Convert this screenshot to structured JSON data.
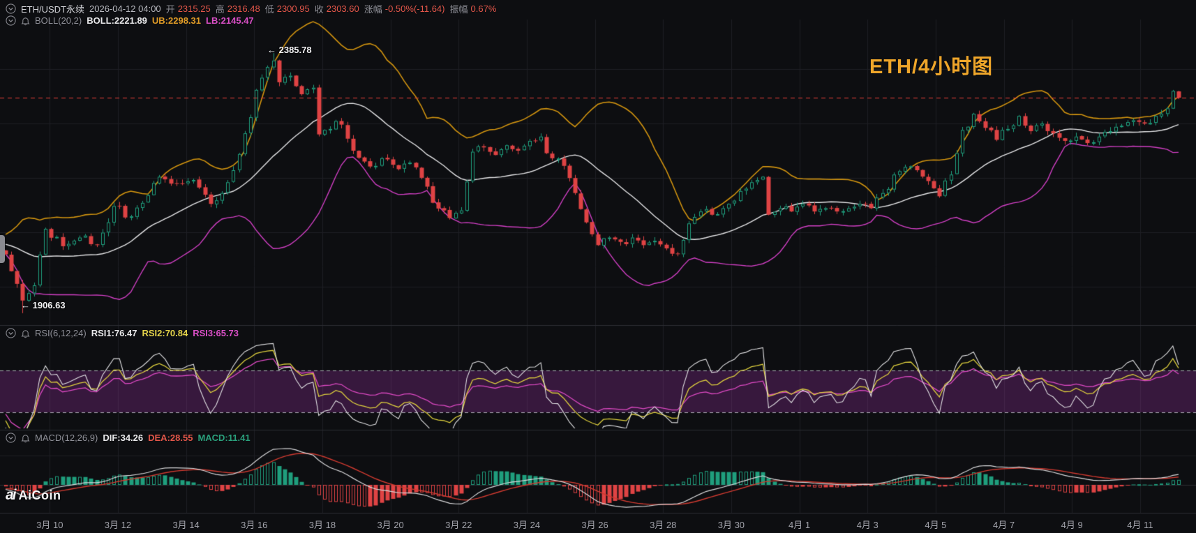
{
  "header": {
    "symbol": "ETH/USDT永续",
    "datetime": "2026-04-12 04:00",
    "open_label": "开",
    "open": "2315.25",
    "high_label": "高",
    "high": "2316.48",
    "low_label": "低",
    "low": "2300.95",
    "close_label": "收",
    "close": "2303.60",
    "change_label": "涨幅",
    "change": "-0.50%(-11.64)",
    "amp_label": "振幅",
    "amp": "0.67%"
  },
  "boll": {
    "name": "BOLL(20,2)",
    "mid": "BOLL:2221.89",
    "ub": "UB:2298.31",
    "lb": "LB:2145.47"
  },
  "rsi": {
    "name": "RSI(6,12,24)",
    "rsi1": "RSI1:76.47",
    "rsi2": "RSI2:70.84",
    "rsi3": "RSI3:65.73"
  },
  "macd": {
    "name": "MACD(12,26,9)",
    "dif": "DIF:34.26",
    "dea": "DEA:28.55",
    "macd": "MACD:11.41"
  },
  "annotations": {
    "high": "← 2385.78",
    "low": "← 1906.63",
    "watermark": "ETH/4小时图"
  },
  "logo": {
    "mark": "ai",
    "word": "AiCoin"
  },
  "xaxis": {
    "labels": [
      "3月 10",
      "3月 12",
      "3月 14",
      "3月 16",
      "3月 18",
      "3月 20",
      "3月 22",
      "3月 24",
      "3月 26",
      "3月 28",
      "3月 30",
      "4月 1",
      "4月 3",
      "4月 5",
      "4月 7",
      "4月 9",
      "4月 11"
    ]
  },
  "colors": {
    "bg": "#0d0e11",
    "grid": "#1e1f24",
    "grid_bright": "#2c2d33",
    "candle_up": "#1f9e7d",
    "candle_down": "#df4344",
    "boll_ub": "#d2940f",
    "boll_mid": "#e6e6e8",
    "boll_lb": "#d13fc4",
    "price_line": "#ef4138",
    "rsi1": "#e2e2e4",
    "rsi2": "#ddcf3d",
    "rsi3": "#dd49c3",
    "rsi_band_fill": "rgba(146,48,156,0.32)",
    "rsi_band_line": "#a9aab2",
    "macd_dif": "#d8d8da",
    "macd_dea": "#d03a30"
  },
  "chart_data": {
    "type": "candlestick",
    "symbol": "ETH/USDT perpetual",
    "interval": "4h",
    "title": "ETH/4小时图",
    "x_labels": [
      "3月10",
      "3月12",
      "3月14",
      "3月16",
      "3月18",
      "3月20",
      "3月22",
      "3月24",
      "3月26",
      "3月28",
      "3月30",
      "4月1",
      "4月3",
      "4月5",
      "4月7",
      "4月9",
      "4月11"
    ],
    "last_bar": {
      "time": "2026-04-12 04:00",
      "open": 2315.25,
      "high": 2316.48,
      "low": 2300.95,
      "close": 2303.6,
      "change_pct": -0.5,
      "change_abs": -11.64,
      "amplitude_pct": 0.67
    },
    "boll": {
      "period": 20,
      "mult": 2,
      "mid": 2221.89,
      "ub": 2298.31,
      "lb": 2145.47
    },
    "rsi": {
      "periods": [
        6,
        12,
        24
      ],
      "values": [
        76.47,
        70.84,
        65.73
      ],
      "band": [
        30,
        70
      ]
    },
    "macd": {
      "params": [
        12,
        26,
        9
      ],
      "dif": 34.26,
      "dea": 28.55,
      "hist": 11.41
    },
    "extremes": {
      "high": 2385.78,
      "low": 1906.63
    },
    "price_domain": [
      1895,
      2445
    ],
    "bar_count": 207,
    "close_anchors": [
      [
        0,
        2015
      ],
      [
        3,
        1930
      ],
      [
        5,
        1958
      ],
      [
        7,
        2062
      ],
      [
        10,
        2030
      ],
      [
        13,
        2046
      ],
      [
        16,
        2032
      ],
      [
        19,
        2104
      ],
      [
        22,
        2085
      ],
      [
        25,
        2124
      ],
      [
        27,
        2158
      ],
      [
        30,
        2145
      ],
      [
        33,
        2152
      ],
      [
        36,
        2108
      ],
      [
        38,
        2128
      ],
      [
        40,
        2170
      ],
      [
        42,
        2238
      ],
      [
        44,
        2318
      ],
      [
        46,
        2360
      ],
      [
        47,
        2372
      ],
      [
        48,
        2332
      ],
      [
        50,
        2344
      ],
      [
        52,
        2310
      ],
      [
        54,
        2322
      ],
      [
        55,
        2236
      ],
      [
        57,
        2246
      ],
      [
        59,
        2254
      ],
      [
        61,
        2206
      ],
      [
        63,
        2186
      ],
      [
        65,
        2178
      ],
      [
        67,
        2190
      ],
      [
        69,
        2172
      ],
      [
        71,
        2184
      ],
      [
        73,
        2156
      ],
      [
        75,
        2110
      ],
      [
        77,
        2096
      ],
      [
        78,
        2082
      ],
      [
        80,
        2096
      ],
      [
        82,
        2204
      ],
      [
        84,
        2212
      ],
      [
        86,
        2198
      ],
      [
        88,
        2216
      ],
      [
        90,
        2206
      ],
      [
        92,
        2224
      ],
      [
        94,
        2232
      ],
      [
        96,
        2192
      ],
      [
        98,
        2178
      ],
      [
        100,
        2128
      ],
      [
        102,
        2074
      ],
      [
        104,
        2032
      ],
      [
        106,
        2046
      ],
      [
        108,
        2038
      ],
      [
        110,
        2046
      ],
      [
        112,
        2032
      ],
      [
        114,
        2040
      ],
      [
        116,
        2026
      ],
      [
        118,
        2016
      ],
      [
        120,
        2072
      ],
      [
        122,
        2094
      ],
      [
        124,
        2088
      ],
      [
        126,
        2100
      ],
      [
        128,
        2114
      ],
      [
        130,
        2136
      ],
      [
        132,
        2152
      ],
      [
        133,
        2158
      ],
      [
        134,
        2088
      ],
      [
        136,
        2100
      ],
      [
        138,
        2094
      ],
      [
        140,
        2108
      ],
      [
        142,
        2094
      ],
      [
        144,
        2100
      ],
      [
        146,
        2094
      ],
      [
        148,
        2100
      ],
      [
        150,
        2108
      ],
      [
        152,
        2100
      ],
      [
        154,
        2128
      ],
      [
        156,
        2162
      ],
      [
        158,
        2176
      ],
      [
        160,
        2170
      ],
      [
        162,
        2150
      ],
      [
        164,
        2122
      ],
      [
        166,
        2162
      ],
      [
        168,
        2244
      ],
      [
        170,
        2274
      ],
      [
        172,
        2248
      ],
      [
        174,
        2226
      ],
      [
        176,
        2246
      ],
      [
        178,
        2270
      ],
      [
        180,
        2242
      ],
      [
        182,
        2256
      ],
      [
        184,
        2238
      ],
      [
        186,
        2224
      ],
      [
        188,
        2232
      ],
      [
        190,
        2220
      ],
      [
        192,
        2232
      ],
      [
        194,
        2242
      ],
      [
        196,
        2252
      ],
      [
        198,
        2262
      ],
      [
        200,
        2256
      ],
      [
        202,
        2270
      ],
      [
        204,
        2284
      ],
      [
        205,
        2316
      ],
      [
        206,
        2303.6
      ]
    ]
  }
}
